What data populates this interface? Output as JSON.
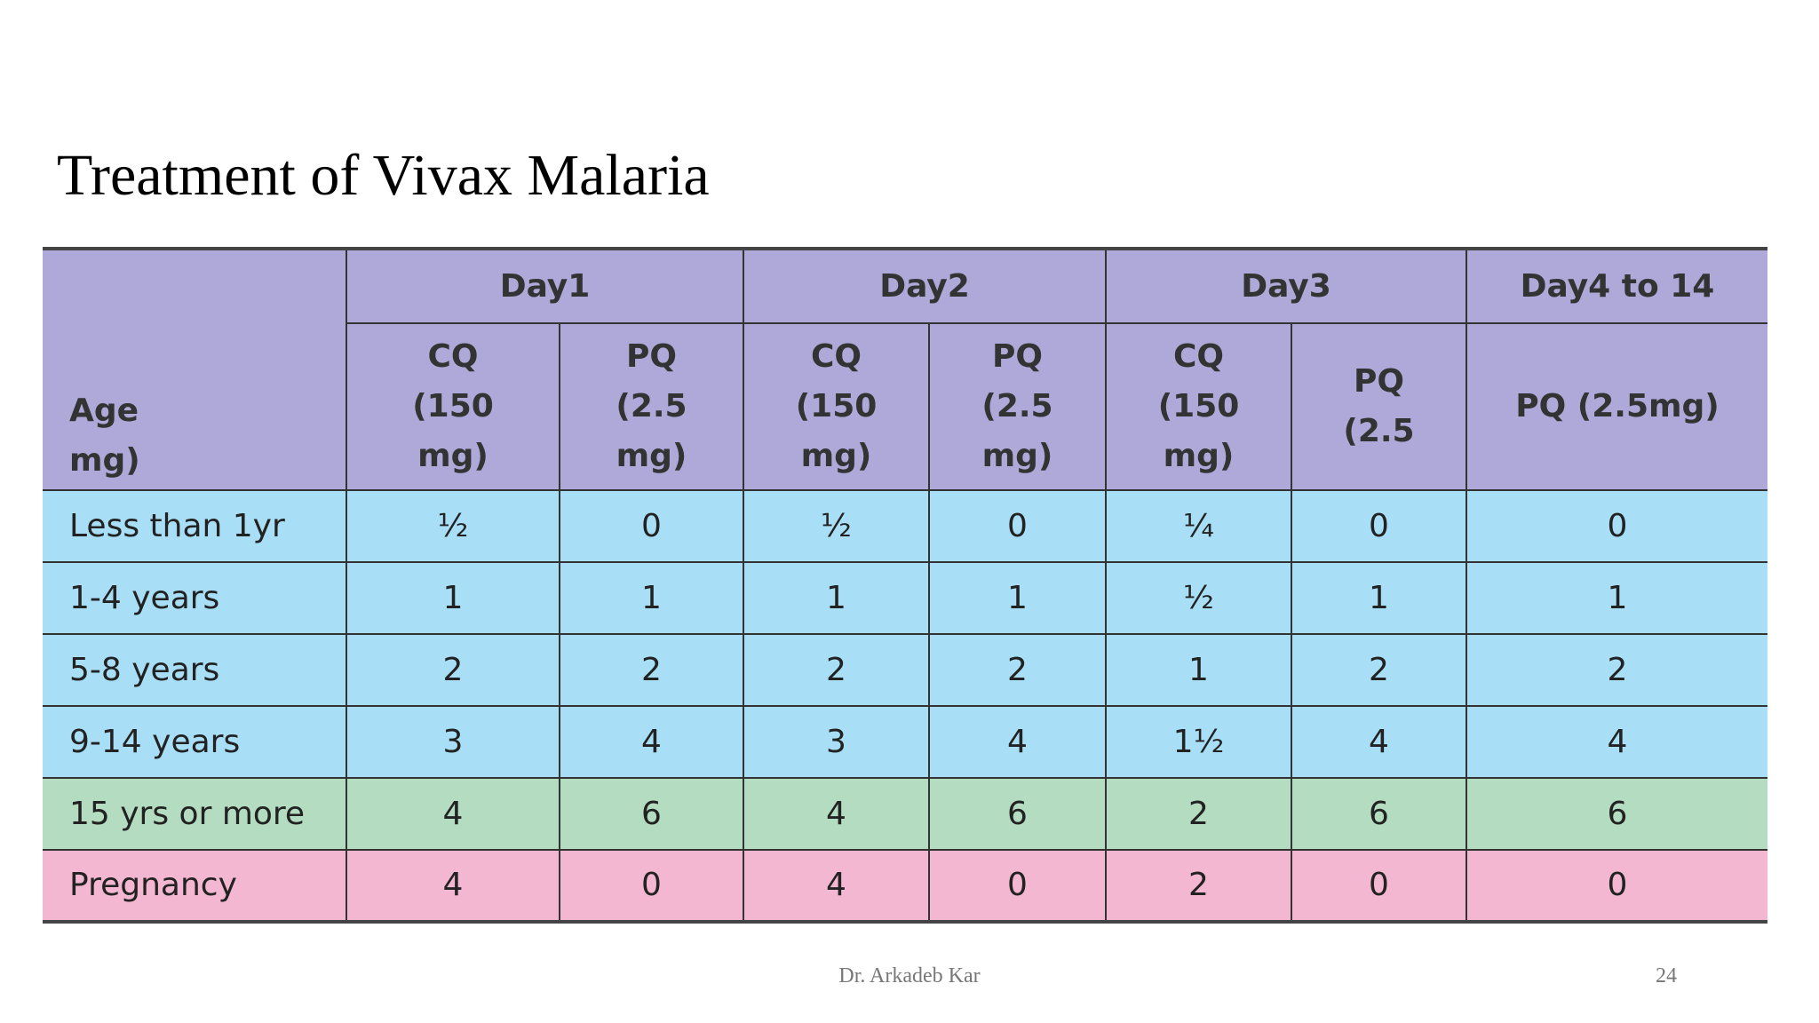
{
  "title": "Treatment of Vivax Malaria",
  "table": {
    "age_header": "Age\nmg)",
    "day_headers": [
      "Day1",
      "Day2",
      "Day3",
      "Day4 to 14"
    ],
    "sub_headers": [
      "CQ\n(150\nmg)",
      "PQ\n(2.5\nmg)",
      "CQ\n(150\nmg)",
      "PQ\n(2.5\nmg)",
      "CQ\n(150\nmg)",
      "PQ\n(2.5",
      "PQ (2.5mg)"
    ],
    "rows": [
      [
        "Less than 1yr",
        "½",
        "0",
        "½",
        "0",
        "¼",
        "0",
        "0"
      ],
      [
        "1-4 years",
        "1",
        "1",
        "1",
        "1",
        "½",
        "1",
        "1"
      ],
      [
        "5-8 years",
        "2",
        "2",
        "2",
        "2",
        "1",
        "2",
        "2"
      ],
      [
        "9-14 years",
        "3",
        "4",
        "3",
        "4",
        "1½",
        "4",
        "4"
      ],
      [
        "15 yrs or more",
        "4",
        "6",
        "4",
        "6",
        "2",
        "6",
        "6"
      ],
      [
        "Pregnancy",
        "4",
        "0",
        "4",
        "0",
        "2",
        "0",
        "0"
      ]
    ]
  },
  "footer": {
    "author": "Dr. Arkadeb Kar",
    "page": "24"
  }
}
